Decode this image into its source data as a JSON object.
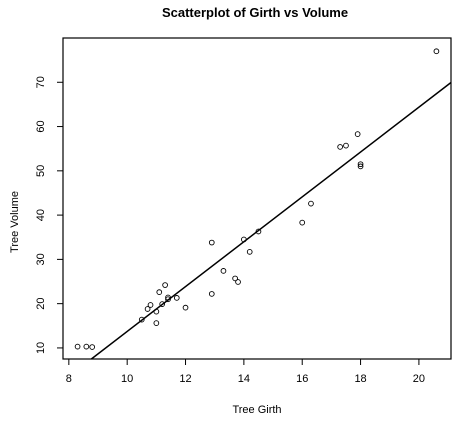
{
  "chart_data": {
    "type": "scatter",
    "title": "Scatterplot of Girth vs Volume",
    "xlabel": "Tree Girth",
    "ylabel": "Tree Volume",
    "xlim": [
      7.8,
      21.1
    ],
    "ylim": [
      7.5,
      80
    ],
    "x_ticks": [
      8,
      10,
      12,
      14,
      16,
      18,
      20
    ],
    "y_ticks": [
      10,
      20,
      30,
      40,
      50,
      60,
      70
    ],
    "grid": false,
    "legend": "none",
    "points": [
      {
        "x": 8.3,
        "y": 10.3
      },
      {
        "x": 8.6,
        "y": 10.3
      },
      {
        "x": 8.8,
        "y": 10.2
      },
      {
        "x": 10.5,
        "y": 16.4
      },
      {
        "x": 10.7,
        "y": 18.8
      },
      {
        "x": 10.8,
        "y": 19.7
      },
      {
        "x": 11.0,
        "y": 15.6
      },
      {
        "x": 11.0,
        "y": 18.2
      },
      {
        "x": 11.1,
        "y": 22.6
      },
      {
        "x": 11.2,
        "y": 19.9
      },
      {
        "x": 11.3,
        "y": 24.2
      },
      {
        "x": 11.4,
        "y": 21.0
      },
      {
        "x": 11.4,
        "y": 21.4
      },
      {
        "x": 11.7,
        "y": 21.3
      },
      {
        "x": 12.0,
        "y": 19.1
      },
      {
        "x": 12.9,
        "y": 22.2
      },
      {
        "x": 12.9,
        "y": 33.8
      },
      {
        "x": 13.3,
        "y": 27.4
      },
      {
        "x": 13.7,
        "y": 25.7
      },
      {
        "x": 13.8,
        "y": 24.9
      },
      {
        "x": 14.0,
        "y": 34.5
      },
      {
        "x": 14.2,
        "y": 31.7
      },
      {
        "x": 14.5,
        "y": 36.3
      },
      {
        "x": 16.0,
        "y": 38.3
      },
      {
        "x": 16.3,
        "y": 42.6
      },
      {
        "x": 17.3,
        "y": 55.4
      },
      {
        "x": 17.5,
        "y": 55.7
      },
      {
        "x": 17.9,
        "y": 58.3
      },
      {
        "x": 18.0,
        "y": 51.5
      },
      {
        "x": 18.0,
        "y": 51.0
      },
      {
        "x": 20.6,
        "y": 77.0
      }
    ],
    "fit_line": {
      "intercept": -36.94,
      "slope": 5.066
    }
  }
}
